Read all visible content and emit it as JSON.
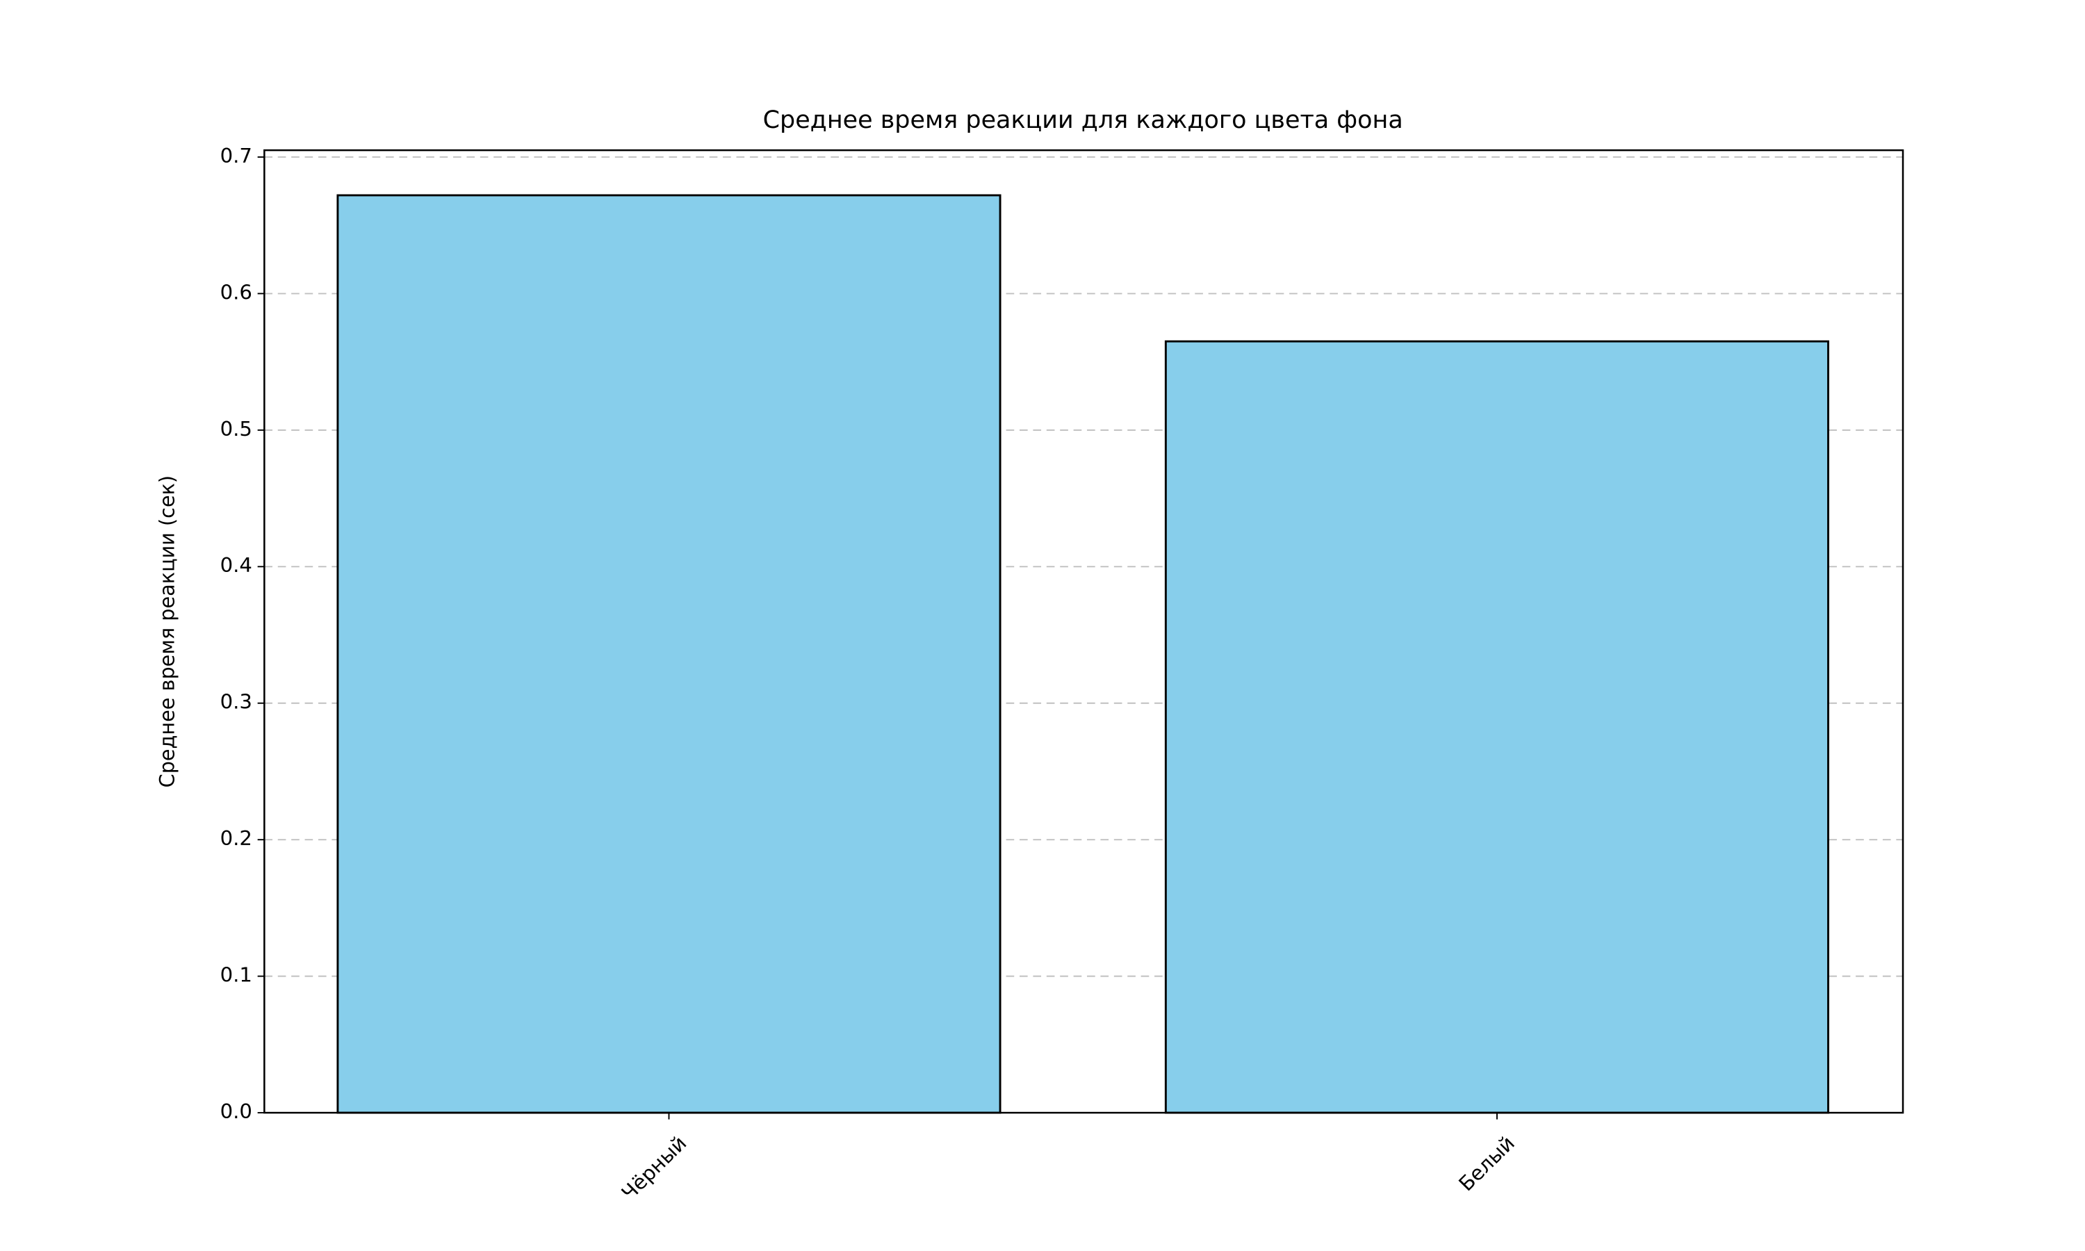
{
  "chart_data": {
    "type": "bar",
    "title": "Среднее время реакции для каждого цвета фона",
    "ylabel": "Среднее время реакции (сек)",
    "categories": [
      "Чёрный",
      "Белый"
    ],
    "values": [
      0.672,
      0.565
    ],
    "color": "#87ceeb",
    "ylim": [
      0,
      0.705
    ],
    "yticks": [
      {
        "value": 0,
        "label": "0.0"
      },
      0.1,
      0.2,
      0.3,
      0.4,
      0.5,
      0.6,
      0.7
    ],
    "grid": true
  }
}
